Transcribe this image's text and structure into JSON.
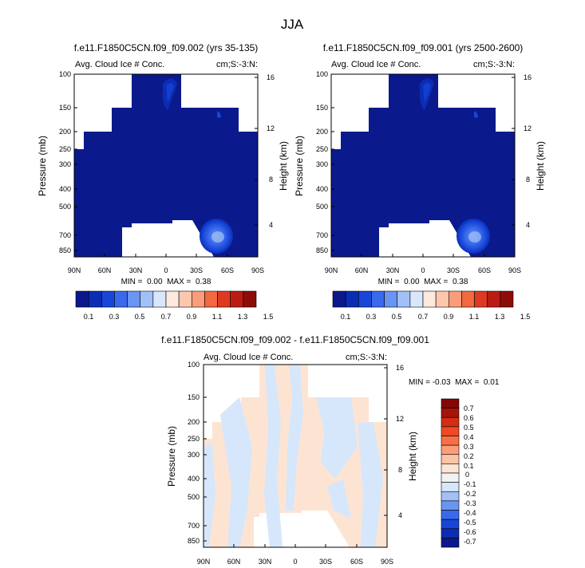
{
  "figure": {
    "title": "JJA"
  },
  "colors": {
    "abs_bins": [
      "#0a1a8c",
      "#0b2db4",
      "#1746d8",
      "#3a6aeb",
      "#6b95f2",
      "#a2c0f7",
      "#d8e7fb",
      "#fde9dd",
      "#fdc7ae",
      "#fb9d7a",
      "#f2683f",
      "#de3a22",
      "#bb1c12",
      "#8c0d08"
    ],
    "diff_bins": [
      "#0a1a8c",
      "#0b2db4",
      "#1746d8",
      "#3a6aeb",
      "#6b95f2",
      "#a2c0f7",
      "#d6e7fb",
      "#f2f2f2",
      "#fde4d2",
      "#fcc4a6",
      "#fb9d7a",
      "#f77045",
      "#ee4a26",
      "#d42d14",
      "#a4140a",
      "#860505"
    ],
    "missing": "#ffffff"
  },
  "chart_data": [
    {
      "type": "heatmap",
      "id": "panel-a",
      "title": "f.e11.F1850C5CN.f09_f09.002 (yrs 35-135)",
      "subtitle_left": "Avg. Cloud Ice # Conc.",
      "subtitle_right": "cm;S:-3:N:",
      "ylabel": "Pressure (mb)",
      "y2label": "Height (km)",
      "xticks": [
        "90N",
        "60N",
        "30N",
        "0",
        "30S",
        "60S",
        "90S"
      ],
      "yticks": [
        "100",
        "150",
        "200",
        "250",
        "300",
        "400",
        "500",
        "700",
        "850"
      ],
      "y2ticks": [
        "16",
        "12",
        "8",
        "4"
      ],
      "stats": "MIN =  0.00  MAX =  0.38",
      "min": 0.0,
      "max": 0.38,
      "colorbar": {
        "labels": [
          "0.1",
          "0.3",
          "0.5",
          "0.7",
          "0.9",
          "1.1",
          "1.3",
          "1.5"
        ]
      }
    },
    {
      "type": "heatmap",
      "id": "panel-b",
      "title": "f.e11.F1850C5CN.f09_f09.001 (yrs 2500-2600)",
      "subtitle_left": "Avg. Cloud Ice # Conc.",
      "subtitle_right": "cm;S:-3:N:",
      "ylabel": "Pressure (mb)",
      "y2label": "Height (km)",
      "xticks": [
        "90N",
        "60N",
        "30N",
        "0",
        "30S",
        "60S",
        "90S"
      ],
      "yticks": [
        "100",
        "150",
        "200",
        "250",
        "300",
        "400",
        "500",
        "700",
        "850"
      ],
      "y2ticks": [
        "16",
        "12",
        "8",
        "4"
      ],
      "stats": "MIN =  0.00  MAX =  0.38",
      "min": 0.0,
      "max": 0.38,
      "colorbar": {
        "labels": [
          "0.1",
          "0.3",
          "0.5",
          "0.7",
          "0.9",
          "1.1",
          "1.3",
          "1.5"
        ]
      }
    },
    {
      "type": "heatmap",
      "id": "panel-diff",
      "title": "f.e11.F1850C5CN.f09_f09.002 - f.e11.F1850C5CN.f09_f09.001",
      "subtitle_left": "Avg. Cloud Ice # Conc.",
      "subtitle_right": "cm;S:-3:N:",
      "ylabel": "Pressure (mb)",
      "y2label": "Height (km)",
      "xticks": [
        "90N",
        "60N",
        "30N",
        "0",
        "30S",
        "60S",
        "90S"
      ],
      "yticks": [
        "100",
        "150",
        "200",
        "250",
        "300",
        "400",
        "500",
        "700",
        "850"
      ],
      "y2ticks": [
        "16",
        "12",
        "8",
        "4"
      ],
      "stats": "MIN = -0.03  MAX =  0.01",
      "min": -0.03,
      "max": 0.01,
      "colorbar": {
        "labels": [
          "0.7",
          "0.6",
          "0.5",
          "0.4",
          "0.3",
          "0.2",
          "0.1",
          "0",
          "-0.1",
          "-0.2",
          "-0.3",
          "-0.4",
          "-0.5",
          "-0.6",
          "-0.7"
        ]
      }
    }
  ]
}
